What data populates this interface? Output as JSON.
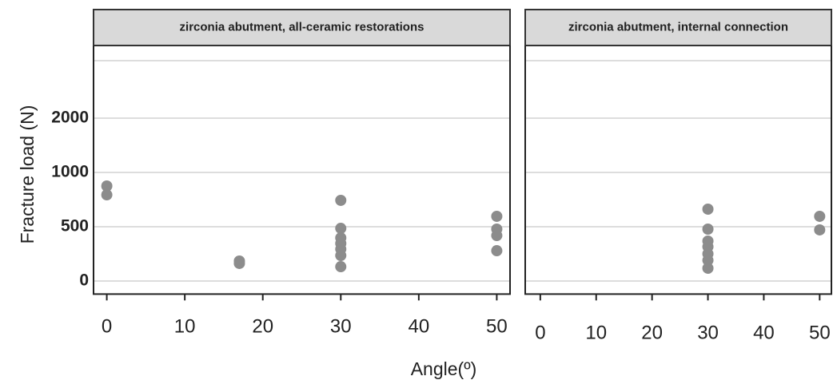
{
  "chart_data": [
    {
      "type": "scatter",
      "title": "zirconia abutment, all-ceramic restorations",
      "y_label": "Fracture load (N)",
      "x_label": "Angle(º)",
      "x": [
        0,
        0,
        17,
        17,
        30,
        30,
        30,
        30,
        30,
        30,
        30,
        50,
        50,
        50,
        50
      ],
      "values": [
        875,
        794,
        184,
        162,
        743,
        485,
        397,
        346,
        294,
        235,
        132,
        596,
        478,
        419,
        279
      ],
      "color": "#8c8c8c",
      "xlim": [
        -1.7,
        51.7
      ],
      "xticks": [
        0,
        10,
        20,
        30,
        40,
        50
      ],
      "ylim": [
        -120,
        3400
      ],
      "yticks": [
        0,
        500,
        1000,
        2000
      ],
      "yscale": "piecewise",
      "grid": true
    },
    {
      "type": "scatter",
      "title": "zirconia abutment, internal connection",
      "x": [
        30,
        30,
        30,
        30,
        30,
        30,
        30,
        50,
        50
      ],
      "values": [
        662,
        478,
        368,
        316,
        250,
        191,
        118,
        596,
        471
      ],
      "color": "#8c8c8c",
      "xlim": [
        -2.7,
        52.1
      ],
      "xticks": [
        0,
        10,
        20,
        30,
        40,
        50
      ],
      "ylim": [
        -120,
        3400
      ],
      "yticks": [
        0,
        500,
        1000,
        2000
      ],
      "yscale": "piecewise",
      "grid": true
    }
  ]
}
